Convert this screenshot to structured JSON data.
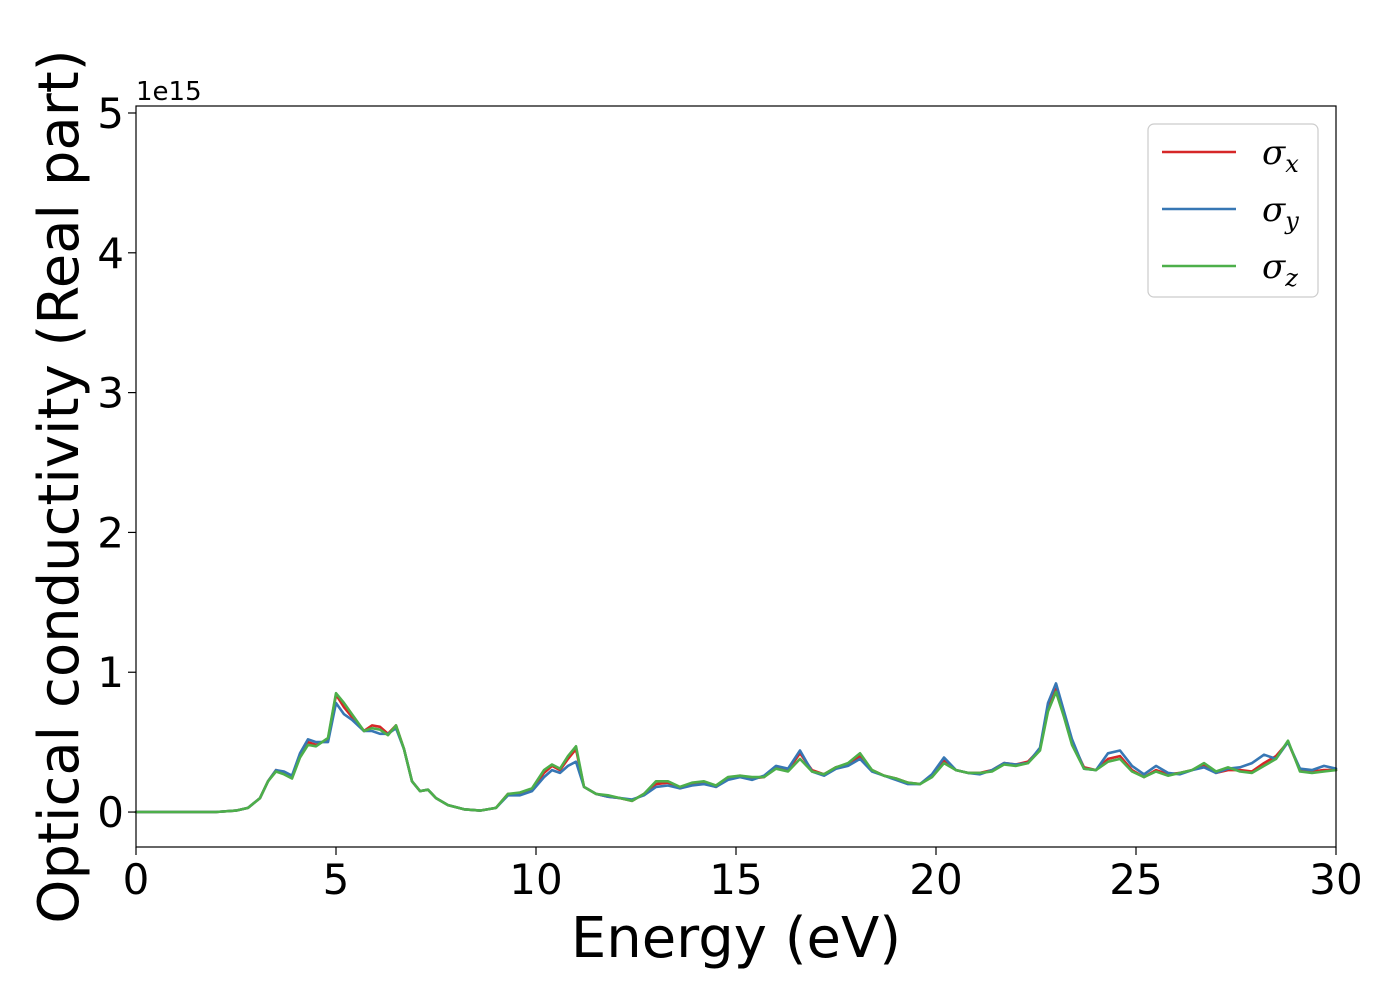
{
  "chart_data": {
    "type": "line",
    "title": "",
    "xlabel": "Energy (eV)",
    "ylabel": "Optical conductivity (Real part)",
    "y_offset_label": "1e15",
    "xlim": [
      0,
      30
    ],
    "ylim": [
      -0.25,
      5.05
    ],
    "xticks": [
      0,
      5,
      10,
      15,
      20,
      25,
      30
    ],
    "xtick_labels": [
      "0",
      "5",
      "10",
      "15",
      "20",
      "25",
      "30"
    ],
    "yticks": [
      0,
      1,
      2,
      3,
      4,
      5
    ],
    "ytick_labels": [
      "0",
      "1",
      "2",
      "3",
      "4",
      "5"
    ],
    "grid": false,
    "legend_position": "top-right",
    "x": [
      0,
      0.5,
      1,
      1.5,
      2,
      2.5,
      2.8,
      3.1,
      3.3,
      3.5,
      3.7,
      3.9,
      4.1,
      4.3,
      4.5,
      4.8,
      5.0,
      5.2,
      5.4,
      5.7,
      5.9,
      6.1,
      6.3,
      6.5,
      6.7,
      6.9,
      7.1,
      7.3,
      7.5,
      7.8,
      8.2,
      8.6,
      9.0,
      9.3,
      9.6,
      9.9,
      10.2,
      10.4,
      10.6,
      10.8,
      11.0,
      11.2,
      11.5,
      11.8,
      12.1,
      12.4,
      12.7,
      13.0,
      13.3,
      13.6,
      13.9,
      14.2,
      14.5,
      14.8,
      15.1,
      15.4,
      15.7,
      16.0,
      16.3,
      16.6,
      16.9,
      17.2,
      17.5,
      17.8,
      18.1,
      18.4,
      18.7,
      19.0,
      19.3,
      19.6,
      19.9,
      20.2,
      20.5,
      20.8,
      21.1,
      21.4,
      21.7,
      22.0,
      22.3,
      22.6,
      22.8,
      23.0,
      23.2,
      23.4,
      23.7,
      24.0,
      24.3,
      24.6,
      24.9,
      25.2,
      25.5,
      25.8,
      26.1,
      26.4,
      26.7,
      27.0,
      27.3,
      27.6,
      27.9,
      28.2,
      28.5,
      28.8,
      29.1,
      29.4,
      29.7,
      30.0
    ],
    "series": [
      {
        "name": "σx",
        "label_base": "σ",
        "label_sub": "x",
        "color": "#d62728",
        "values": [
          0,
          0,
          0,
          0,
          0,
          0.01,
          0.03,
          0.1,
          0.22,
          0.3,
          0.28,
          0.25,
          0.4,
          0.5,
          0.48,
          0.52,
          0.84,
          0.75,
          0.68,
          0.58,
          0.62,
          0.61,
          0.56,
          0.62,
          0.45,
          0.22,
          0.15,
          0.16,
          0.1,
          0.05,
          0.02,
          0.01,
          0.03,
          0.13,
          0.13,
          0.16,
          0.28,
          0.33,
          0.3,
          0.38,
          0.45,
          0.18,
          0.13,
          0.11,
          0.1,
          0.08,
          0.13,
          0.2,
          0.21,
          0.17,
          0.2,
          0.21,
          0.18,
          0.24,
          0.26,
          0.24,
          0.25,
          0.32,
          0.3,
          0.42,
          0.3,
          0.27,
          0.32,
          0.34,
          0.4,
          0.3,
          0.26,
          0.24,
          0.21,
          0.2,
          0.26,
          0.37,
          0.3,
          0.28,
          0.28,
          0.3,
          0.35,
          0.34,
          0.36,
          0.45,
          0.75,
          0.88,
          0.7,
          0.5,
          0.32,
          0.3,
          0.38,
          0.4,
          0.3,
          0.25,
          0.3,
          0.27,
          0.28,
          0.3,
          0.34,
          0.28,
          0.3,
          0.3,
          0.29,
          0.35,
          0.4,
          0.5,
          0.3,
          0.29,
          0.3,
          0.3
        ]
      },
      {
        "name": "σy",
        "label_base": "σ",
        "label_sub": "y",
        "color": "#3777b4",
        "values": [
          0,
          0,
          0,
          0,
          0,
          0.01,
          0.03,
          0.1,
          0.22,
          0.3,
          0.29,
          0.26,
          0.42,
          0.52,
          0.5,
          0.5,
          0.78,
          0.7,
          0.66,
          0.58,
          0.58,
          0.56,
          0.56,
          0.6,
          0.45,
          0.22,
          0.15,
          0.16,
          0.1,
          0.05,
          0.02,
          0.01,
          0.03,
          0.12,
          0.12,
          0.15,
          0.25,
          0.3,
          0.28,
          0.33,
          0.36,
          0.18,
          0.13,
          0.11,
          0.1,
          0.09,
          0.12,
          0.18,
          0.19,
          0.17,
          0.19,
          0.2,
          0.18,
          0.23,
          0.25,
          0.23,
          0.26,
          0.33,
          0.31,
          0.44,
          0.29,
          0.26,
          0.31,
          0.33,
          0.38,
          0.29,
          0.26,
          0.23,
          0.2,
          0.2,
          0.27,
          0.39,
          0.3,
          0.28,
          0.27,
          0.3,
          0.35,
          0.34,
          0.35,
          0.46,
          0.78,
          0.92,
          0.72,
          0.52,
          0.31,
          0.3,
          0.42,
          0.44,
          0.33,
          0.27,
          0.33,
          0.28,
          0.27,
          0.3,
          0.32,
          0.28,
          0.31,
          0.32,
          0.35,
          0.41,
          0.38,
          0.5,
          0.31,
          0.3,
          0.33,
          0.31
        ]
      },
      {
        "name": "σz",
        "label_base": "σ",
        "label_sub": "z",
        "color": "#4daf4a",
        "values": [
          0,
          0,
          0,
          0,
          0,
          0.01,
          0.03,
          0.1,
          0.22,
          0.29,
          0.27,
          0.24,
          0.39,
          0.48,
          0.47,
          0.53,
          0.85,
          0.78,
          0.7,
          0.58,
          0.6,
          0.59,
          0.55,
          0.62,
          0.45,
          0.22,
          0.15,
          0.16,
          0.1,
          0.05,
          0.02,
          0.01,
          0.03,
          0.13,
          0.14,
          0.17,
          0.3,
          0.34,
          0.31,
          0.4,
          0.47,
          0.18,
          0.13,
          0.12,
          0.1,
          0.08,
          0.13,
          0.22,
          0.22,
          0.18,
          0.21,
          0.22,
          0.19,
          0.25,
          0.26,
          0.25,
          0.25,
          0.31,
          0.29,
          0.38,
          0.29,
          0.27,
          0.32,
          0.35,
          0.42,
          0.3,
          0.26,
          0.24,
          0.21,
          0.2,
          0.25,
          0.35,
          0.3,
          0.28,
          0.28,
          0.29,
          0.34,
          0.33,
          0.35,
          0.44,
          0.72,
          0.86,
          0.68,
          0.48,
          0.31,
          0.3,
          0.36,
          0.38,
          0.29,
          0.25,
          0.29,
          0.26,
          0.28,
          0.3,
          0.35,
          0.29,
          0.32,
          0.29,
          0.28,
          0.33,
          0.38,
          0.51,
          0.29,
          0.28,
          0.29,
          0.3
        ]
      }
    ]
  }
}
